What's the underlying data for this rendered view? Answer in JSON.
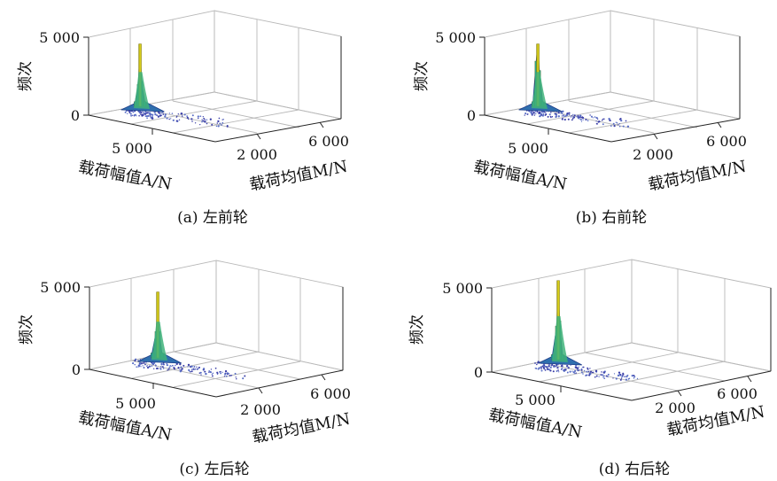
{
  "chart_data": [
    {
      "type": "bar3d",
      "caption": "(a) 左前轮",
      "zlabel": "频次",
      "xlabel": "载荷幅值A/N",
      "ylabel": "载荷均值M/N",
      "z_ticks": [
        "5 000",
        "0"
      ],
      "x_ticks": [
        "5 000"
      ],
      "y_ticks": [
        "2 000",
        "6 000"
      ],
      "zlim": [
        0,
        5000
      ],
      "x_ticks_values": [
        5000
      ],
      "y_ticks_values": [
        2000,
        6000
      ],
      "peak_frequency": 4000,
      "peak_amplitude": 1000,
      "peak_mean": 300,
      "profile": [
        {
          "mean": 0,
          "frequency": 300
        },
        {
          "mean": 200,
          "frequency": 1400
        },
        {
          "mean": 300,
          "frequency": 4000
        },
        {
          "mean": 400,
          "frequency": 1600
        },
        {
          "mean": 600,
          "frequency": 300
        }
      ]
    },
    {
      "type": "bar3d",
      "caption": "(b) 右前轮",
      "zlabel": "频次",
      "xlabel": "载荷幅值A/N",
      "ylabel": "载荷均值M/N",
      "z_ticks": [
        "5 000",
        "0"
      ],
      "x_ticks": [
        "5 000"
      ],
      "y_ticks": [
        "2 000",
        "6 000"
      ],
      "zlim": [
        0,
        5000
      ],
      "x_ticks_values": [
        5000
      ],
      "y_ticks_values": [
        2000,
        6000
      ],
      "peak_frequency": 4000,
      "peak_amplitude": 1000,
      "peak_mean": 300,
      "profile": [
        {
          "mean": 0,
          "frequency": 300
        },
        {
          "mean": 200,
          "frequency": 2900
        },
        {
          "mean": 300,
          "frequency": 4000
        },
        {
          "mean": 400,
          "frequency": 2300
        },
        {
          "mean": 600,
          "frequency": 300
        }
      ]
    },
    {
      "type": "bar3d",
      "caption": "(c) 左后轮",
      "zlabel": "频次",
      "xlabel": "载荷幅值A/N",
      "ylabel": "载荷均值M/N",
      "z_ticks": [
        "5 000",
        "0"
      ],
      "x_ticks": [
        "5 000"
      ],
      "y_ticks": [
        "2 000",
        "6 000"
      ],
      "zlim": [
        0,
        5000
      ],
      "x_ticks_values": [
        5000
      ],
      "y_ticks_values": [
        2000,
        6000
      ],
      "peak_frequency": 4000,
      "peak_amplitude": 1000,
      "peak_mean": 400,
      "profile": [
        {
          "mean": 0,
          "frequency": 300
        },
        {
          "mean": 300,
          "frequency": 1600
        },
        {
          "mean": 400,
          "frequency": 4000
        },
        {
          "mean": 500,
          "frequency": 1600
        },
        {
          "mean": 700,
          "frequency": 300
        }
      ]
    },
    {
      "type": "bar3d",
      "caption": "(d) 右后轮",
      "zlabel": "频次",
      "xlabel": "载荷幅值A/N",
      "ylabel": "载荷均值M/N",
      "z_ticks": [
        "5 000",
        "0"
      ],
      "x_ticks": [
        "5 000"
      ],
      "y_ticks": [
        "2 000",
        "6 000"
      ],
      "zlim": [
        0,
        5000
      ],
      "x_ticks_values": [
        5000
      ],
      "y_ticks_values": [
        2000,
        6000
      ],
      "peak_frequency": 4700,
      "peak_amplitude": 1000,
      "peak_mean": 400,
      "profile": [
        {
          "mean": 0,
          "frequency": 300
        },
        {
          "mean": 300,
          "frequency": 2000
        },
        {
          "mean": 400,
          "frequency": 4700
        },
        {
          "mean": 500,
          "frequency": 2300
        },
        {
          "mean": 700,
          "frequency": 300
        }
      ]
    }
  ]
}
